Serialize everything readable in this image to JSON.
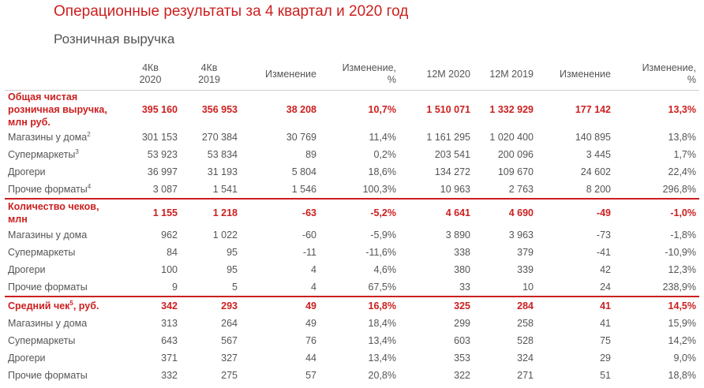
{
  "title": "Операционные результаты за 4 квартал и 2020 год",
  "subtitle": "Розничная выручка",
  "columns": [
    {
      "line1": "4Кв",
      "line2": "2020"
    },
    {
      "line1": "4Кв",
      "line2": "2019"
    },
    {
      "line1": "Изменение",
      "line2": ""
    },
    {
      "line1": "Изменение,",
      "line2": "%"
    },
    {
      "line1": "12M 2020",
      "line2": ""
    },
    {
      "line1": "12M 2019",
      "line2": ""
    },
    {
      "line1": "Изменение",
      "line2": ""
    },
    {
      "line1": "Изменение,",
      "line2": "%"
    }
  ],
  "sections": [
    {
      "header": {
        "label": "Общая чистая розничная выручка, млн руб.",
        "sup": "",
        "values": [
          "395 160",
          "356 953",
          "38 208",
          "10,7%",
          "1 510 071",
          "1 332 929",
          "177 142",
          "13,3%"
        ]
      },
      "rows": [
        {
          "label": "Магазины у дома",
          "sup": "2",
          "values": [
            "301 153",
            "270 384",
            "30 769",
            "11,4%",
            "1 161 295",
            "1 020 400",
            "140 895",
            "13,8%"
          ]
        },
        {
          "label": "Супермаркеты",
          "sup": "3",
          "values": [
            "53 923",
            "53 834",
            "89",
            "0,2%",
            "203 541",
            "200 096",
            "3 445",
            "1,7%"
          ]
        },
        {
          "label": "Дрогери",
          "sup": "",
          "values": [
            "36 997",
            "31 193",
            "5 804",
            "18,6%",
            "134 272",
            "109 670",
            "24 602",
            "22,4%"
          ]
        },
        {
          "label": "Прочие форматы",
          "sup": "4",
          "values": [
            "3 087",
            "1 541",
            "1 546",
            "100,3%",
            "10 963",
            "2 763",
            "8 200",
            "296,8%"
          ]
        }
      ]
    },
    {
      "header": {
        "label": "Количество чеков, млн",
        "sup": "",
        "values": [
          "1 155",
          "1 218",
          "-63",
          "-5,2%",
          "4 641",
          "4 690",
          "-49",
          "-1,0%"
        ]
      },
      "rows": [
        {
          "label": "Магазины у дома",
          "sup": "",
          "values": [
            "962",
            "1 022",
            "-60",
            "-5,9%",
            "3 890",
            "3 963",
            "-73",
            "-1,8%"
          ]
        },
        {
          "label": "Супермаркеты",
          "sup": "",
          "values": [
            "84",
            "95",
            "-11",
            "-11,6%",
            "338",
            "379",
            "-41",
            "-10,9%"
          ]
        },
        {
          "label": "Дрогери",
          "sup": "",
          "values": [
            "100",
            "95",
            "4",
            "4,6%",
            "380",
            "339",
            "42",
            "12,3%"
          ]
        },
        {
          "label": "Прочие форматы",
          "sup": "",
          "values": [
            "9",
            "5",
            "4",
            "67,5%",
            "33",
            "10",
            "24",
            "238,9%"
          ]
        }
      ]
    },
    {
      "header": {
        "label": "Средний чек",
        "sup": "5",
        "label_suffix": ", руб.",
        "values": [
          "342",
          "293",
          "49",
          "16,8%",
          "325",
          "284",
          "41",
          "14,5%"
        ]
      },
      "rows": [
        {
          "label": "Магазины у дома",
          "sup": "",
          "values": [
            "313",
            "264",
            "49",
            "18,4%",
            "299",
            "258",
            "41",
            "15,9%"
          ]
        },
        {
          "label": "Супермаркеты",
          "sup": "",
          "values": [
            "643",
            "567",
            "76",
            "13,4%",
            "603",
            "528",
            "75",
            "14,2%"
          ]
        },
        {
          "label": "Дрогери",
          "sup": "",
          "values": [
            "371",
            "327",
            "44",
            "13,4%",
            "353",
            "324",
            "29",
            "9,0%"
          ]
        },
        {
          "label": "Прочие форматы",
          "sup": "",
          "values": [
            "332",
            "275",
            "57",
            "20,8%",
            "322",
            "271",
            "51",
            "18,8%"
          ]
        }
      ]
    }
  ],
  "colors": {
    "accent": "#cc1f1f",
    "text": "#555555"
  }
}
